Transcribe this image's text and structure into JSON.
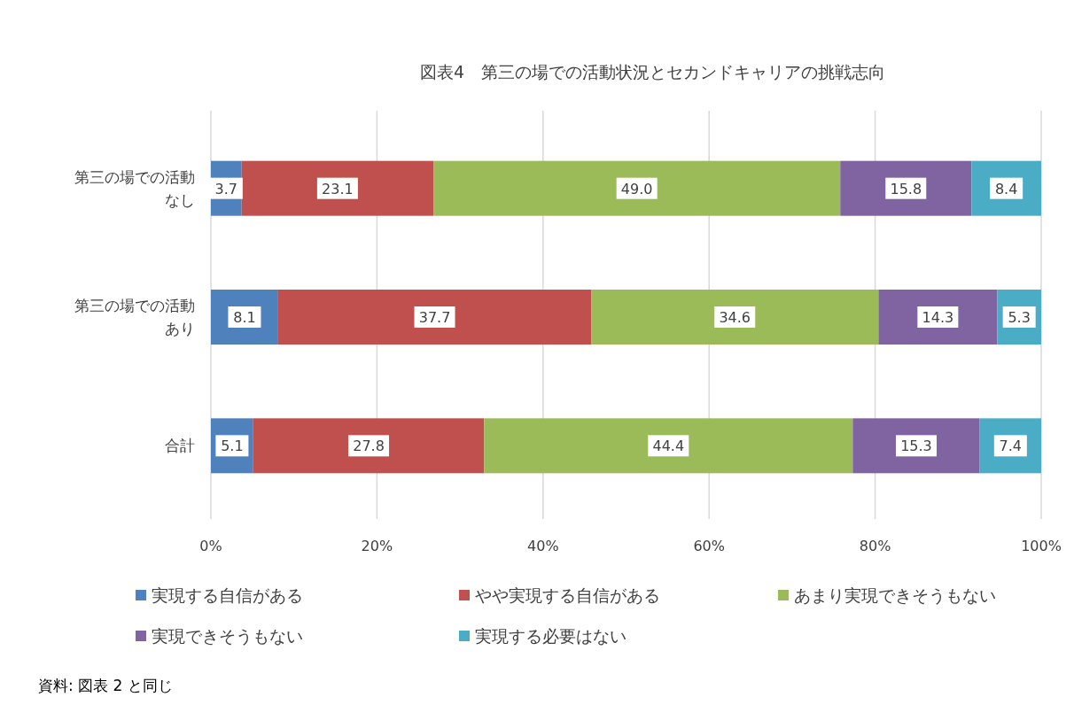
{
  "chart_data": {
    "type": "bar",
    "orientation": "horizontal",
    "stacked": true,
    "title": "図表4　第三の場での活動状況とセカンドキャリアの挑戦志向",
    "categories": [
      "第三の場での活動なし",
      "第三の場での活動あり",
      "合計"
    ],
    "series": [
      {
        "name": "実現する自信がある",
        "color": "#4f81bd",
        "values": [
          3.7,
          8.1,
          5.1
        ],
        "value_labels": [
          "3.7",
          "8.1",
          "5.1"
        ]
      },
      {
        "name": "やや実現する自信がある",
        "color": "#c0504d",
        "values": [
          23.1,
          37.7,
          27.8
        ],
        "value_labels": [
          "23.1",
          "37.7",
          "27.8"
        ]
      },
      {
        "name": "あまり実現できそうもない",
        "color": "#9bbb59",
        "values": [
          49.0,
          34.6,
          44.4
        ],
        "value_labels": [
          "49.0",
          "34.6",
          "44.4"
        ]
      },
      {
        "name": "実現できそうもない",
        "color": "#8064a2",
        "values": [
          15.8,
          14.3,
          15.3
        ],
        "value_labels": [
          "15.8",
          "14.3",
          "15.3"
        ]
      },
      {
        "name": "実現する必要はない",
        "color": "#4bacc6",
        "values": [
          8.4,
          5.3,
          7.4
        ],
        "value_labels": [
          "8.4",
          "5.3",
          "7.4"
        ]
      }
    ],
    "xlim": [
      0,
      100
    ],
    "xticks": [
      {
        "value": 0,
        "label": "0%"
      },
      {
        "value": 20,
        "label": "20%"
      },
      {
        "value": 40,
        "label": "40%"
      },
      {
        "value": 60,
        "label": "60%"
      },
      {
        "value": 80,
        "label": "80%"
      },
      {
        "value": 100,
        "label": "100%"
      }
    ],
    "grid": "x",
    "legend": "bottom",
    "annotations": [
      "資料: 図表 2 と同じ"
    ]
  }
}
